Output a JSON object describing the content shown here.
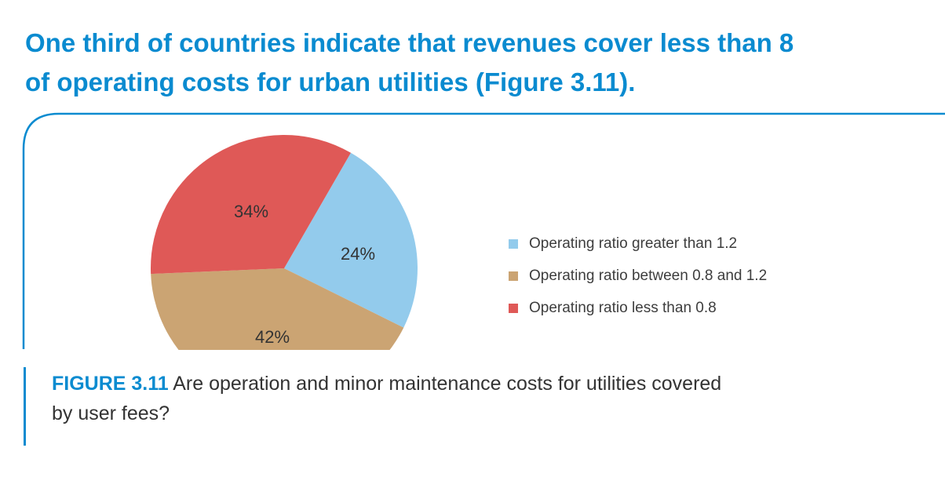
{
  "headline": {
    "line1": "One third of countries indicate that revenues cover less than 8",
    "line2": "of operating costs for urban utilities (Figure 3.11)."
  },
  "caption": {
    "label": "FIGURE 3.11",
    "line1": " Are operation and minor maintenance costs for utilities covered",
    "line2": "by user fees?"
  },
  "colors": {
    "accent": "#0a8bd0",
    "greater_than_1_2": "#93cbec",
    "between_0_8_and_1_2": "#cba473",
    "less_than_0_8": "#df5957"
  },
  "chart_data": {
    "type": "pie",
    "title": "",
    "legend_position": "right",
    "start": "top-right, clockwise",
    "slices": [
      {
        "label": "Operating ratio greater than 1.2",
        "value": 24,
        "value_label": "24%",
        "color": "#93cbec"
      },
      {
        "label": "Operating ratio between 0.8 and 1.2",
        "value": 42,
        "value_label": "42%",
        "color": "#cba473"
      },
      {
        "label": "Operating ratio less than 0.8",
        "value": 34,
        "value_label": "34%",
        "color": "#df5957"
      }
    ]
  }
}
